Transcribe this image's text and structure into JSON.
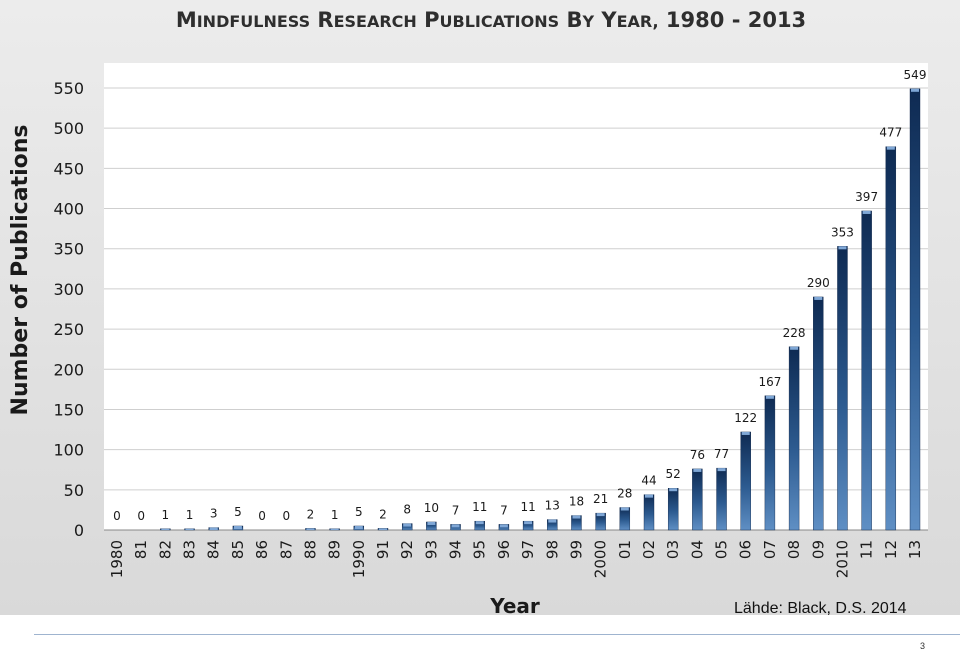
{
  "chart_data": {
    "type": "bar",
    "title": "Mindfulness Research Publications by Year, 1980 - 2013",
    "xlabel": "Year",
    "ylabel": "Number of Publications",
    "ylim": [
      0,
      550
    ],
    "yticks": [
      0,
      50,
      100,
      150,
      200,
      250,
      300,
      350,
      400,
      450,
      500,
      550
    ],
    "grid": true,
    "legend": "none",
    "categories": [
      "1980",
      "81",
      "82",
      "83",
      "84",
      "85",
      "86",
      "87",
      "88",
      "89",
      "1990",
      "91",
      "92",
      "93",
      "94",
      "95",
      "96",
      "97",
      "98",
      "99",
      "2000",
      "01",
      "02",
      "03",
      "04",
      "05",
      "06",
      "07",
      "08",
      "09",
      "2010",
      "11",
      "12",
      "13"
    ],
    "values": [
      0,
      0,
      1,
      1,
      3,
      5,
      0,
      0,
      2,
      1,
      5,
      2,
      8,
      10,
      7,
      11,
      7,
      11,
      13,
      18,
      21,
      28,
      44,
      52,
      76,
      77,
      122,
      167,
      228,
      290,
      353,
      397,
      477,
      549
    ],
    "bar_color": "#2f5f94"
  },
  "source_note": "Lähde: Black, D.S. 2014",
  "page_number": "3"
}
